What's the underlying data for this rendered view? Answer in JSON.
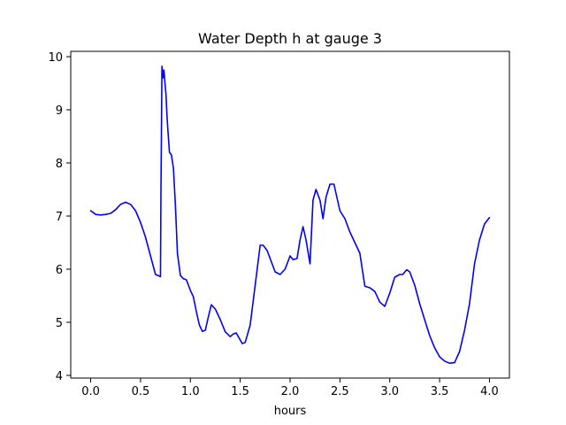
{
  "chart_data": {
    "type": "line",
    "title": "Water Depth h at gauge 3",
    "xlabel": "hours",
    "ylabel": "",
    "xlim": [
      -0.2,
      4.2
    ],
    "ylim": [
      3.95,
      10.1
    ],
    "grid": false,
    "xticks": [
      0.0,
      0.5,
      1.0,
      1.5,
      2.0,
      2.5,
      3.0,
      3.5,
      4.0
    ],
    "xtick_labels": [
      "0.0",
      "0.5",
      "1.0",
      "1.5",
      "2.0",
      "2.5",
      "3.0",
      "3.5",
      "4.0"
    ],
    "yticks": [
      4,
      5,
      6,
      7,
      8,
      9,
      10
    ],
    "ytick_labels": [
      "4",
      "5",
      "6",
      "7",
      "8",
      "9",
      "10"
    ],
    "series": [
      {
        "color": "#0000ff",
        "x": [
          0.0,
          0.05,
          0.1,
          0.15,
          0.2,
          0.25,
          0.3,
          0.35,
          0.4,
          0.45,
          0.5,
          0.55,
          0.6,
          0.65,
          0.7,
          0.705,
          0.715,
          0.725,
          0.735,
          0.745,
          0.755,
          0.765,
          0.775,
          0.79,
          0.81,
          0.83,
          0.85,
          0.87,
          0.9,
          0.93,
          0.96,
          1.0,
          1.03,
          1.06,
          1.09,
          1.12,
          1.15,
          1.18,
          1.21,
          1.25,
          1.3,
          1.35,
          1.4,
          1.43,
          1.46,
          1.49,
          1.52,
          1.55,
          1.6,
          1.63,
          1.67,
          1.7,
          1.73,
          1.77,
          1.8,
          1.85,
          1.9,
          1.95,
          2.0,
          2.03,
          2.07,
          2.1,
          2.13,
          2.16,
          2.2,
          2.23,
          2.26,
          2.3,
          2.33,
          2.36,
          2.4,
          2.44,
          2.47,
          2.5,
          2.55,
          2.6,
          2.65,
          2.7,
          2.75,
          2.8,
          2.85,
          2.9,
          2.95,
          3.0,
          3.05,
          3.1,
          3.13,
          3.17,
          3.2,
          3.25,
          3.3,
          3.35,
          3.4,
          3.45,
          3.5,
          3.55,
          3.6,
          3.65,
          3.7,
          3.75,
          3.8,
          3.85,
          3.9,
          3.95,
          4.0
        ],
        "y": [
          7.1,
          7.03,
          7.02,
          7.03,
          7.05,
          7.12,
          7.22,
          7.26,
          7.22,
          7.1,
          6.88,
          6.6,
          6.25,
          5.9,
          5.86,
          7.5,
          9.82,
          9.6,
          9.75,
          9.5,
          9.3,
          8.9,
          8.6,
          8.2,
          8.15,
          7.9,
          7.2,
          6.3,
          5.88,
          5.82,
          5.8,
          5.6,
          5.48,
          5.2,
          4.95,
          4.83,
          4.85,
          5.1,
          5.33,
          5.25,
          5.05,
          4.82,
          4.73,
          4.78,
          4.8,
          4.7,
          4.6,
          4.62,
          4.95,
          5.4,
          6.0,
          6.45,
          6.45,
          6.35,
          6.2,
          5.95,
          5.9,
          6.0,
          6.25,
          6.18,
          6.2,
          6.55,
          6.8,
          6.55,
          6.1,
          7.3,
          7.5,
          7.3,
          6.95,
          7.35,
          7.6,
          7.6,
          7.35,
          7.1,
          6.95,
          6.7,
          6.5,
          6.3,
          5.68,
          5.65,
          5.58,
          5.38,
          5.3,
          5.55,
          5.85,
          5.9,
          5.9,
          5.99,
          5.95,
          5.7,
          5.35,
          5.05,
          4.75,
          4.52,
          4.35,
          4.27,
          4.23,
          4.24,
          4.45,
          4.85,
          5.35,
          6.1,
          6.55,
          6.85,
          6.97
        ]
      }
    ]
  }
}
